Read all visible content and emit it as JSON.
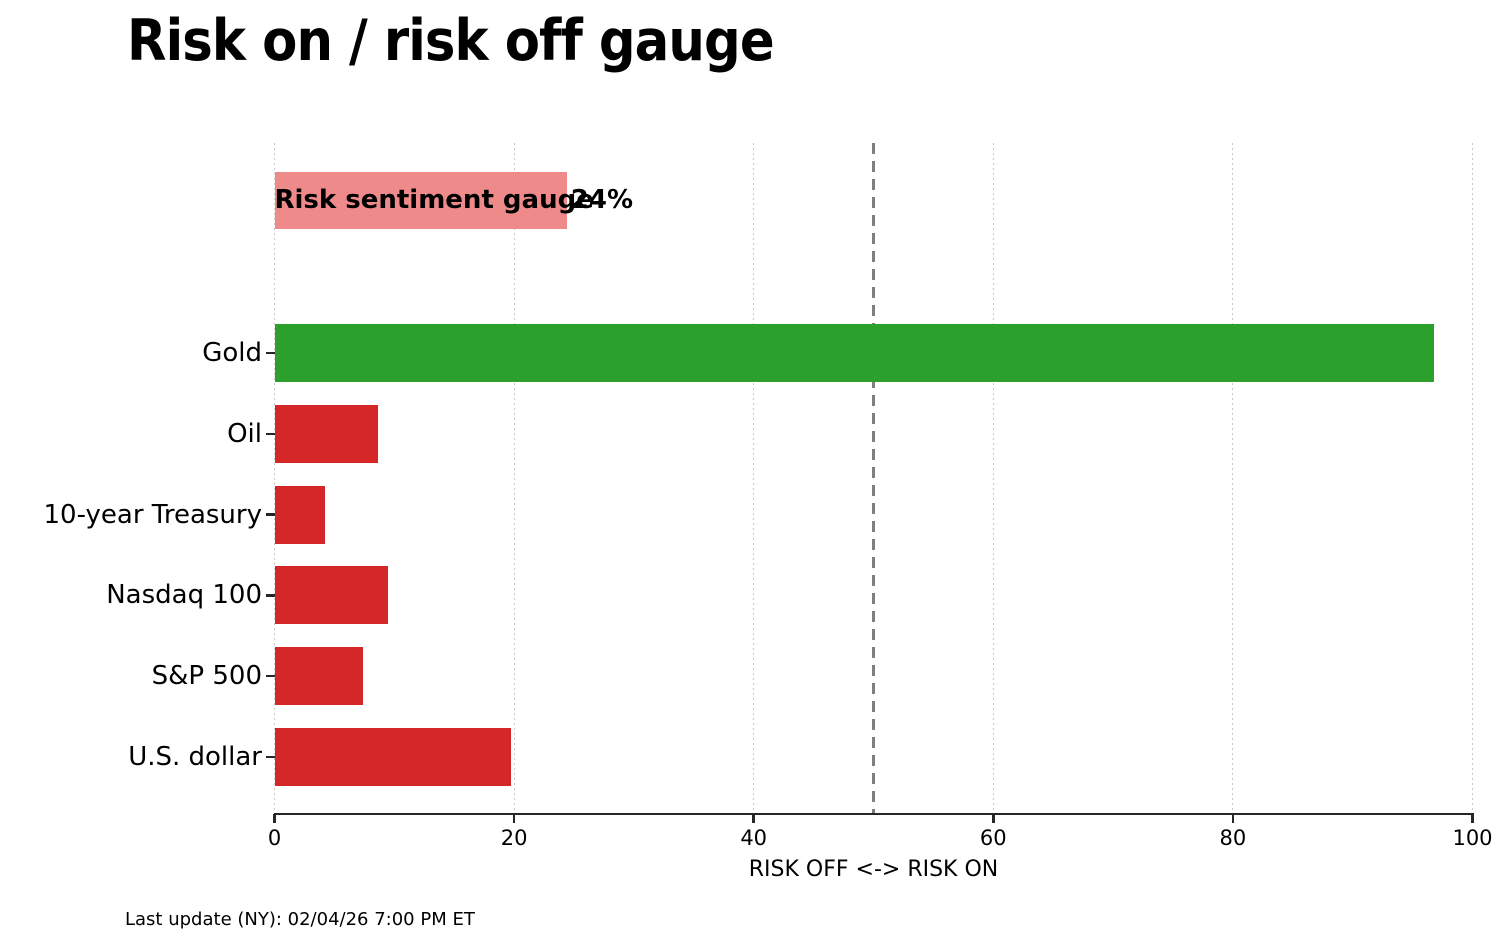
{
  "chart_data": {
    "type": "bar",
    "orientation": "horizontal",
    "title": "Risk on / risk off gauge",
    "xlabel": "RISK OFF <-> RISK ON",
    "xlim": [
      0,
      100
    ],
    "xticks": [
      0,
      20,
      40,
      60,
      80,
      100
    ],
    "grid": "vertical dotted gridlines at each x tick",
    "legend": "none",
    "threshold_line": {
      "value": 50,
      "style": "dashed",
      "color": "#7f7f7f"
    },
    "gauge": {
      "label": "Risk sentiment gauge",
      "value": 24.4,
      "value_label": "24%",
      "color": "#ee8a8a"
    },
    "categories": [
      "Gold",
      "Oil",
      "10-year Treasury",
      "Nasdaq 100",
      "S&P 500",
      "U.S. dollar"
    ],
    "values": [
      96.8,
      8.6,
      4.2,
      9.5,
      7.4,
      19.7
    ],
    "bar_colors": [
      "#2ca02c",
      "#d62728",
      "#d62728",
      "#d62728",
      "#d62728",
      "#d62728"
    ],
    "risk_on_color": "#2ca02c",
    "risk_off_color": "#d62728"
  },
  "footer": {
    "text": "Last update (NY): 02/04/26 7:00 PM ET"
  }
}
